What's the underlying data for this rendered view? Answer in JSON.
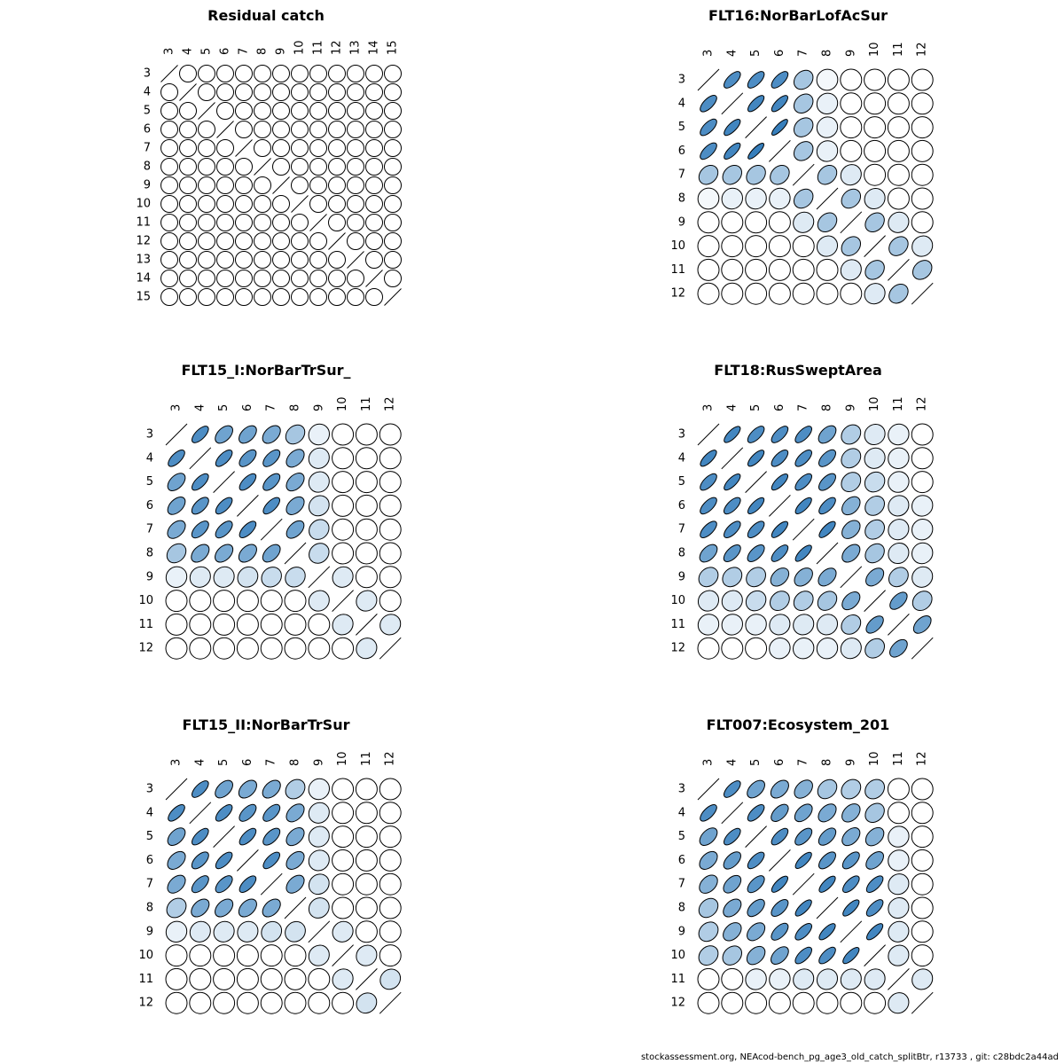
{
  "footer": "stockassessment.org, NEAcod-bench_pg_age3_old_catch_splitBtr, r13733 , git: c28bdc2a44ad",
  "color_scale": {
    "low": "#ffffff",
    "high": "#2171b5"
  },
  "chart_data": [
    {
      "type": "correlation-matrix",
      "title": "Residual catch",
      "ages": [
        "3",
        "4",
        "5",
        "6",
        "7",
        "8",
        "9",
        "10",
        "11",
        "12",
        "13",
        "14",
        "15"
      ],
      "matrix": [
        [
          1.0,
          0.0,
          0.0,
          0.0,
          0.0,
          0.0,
          0.0,
          0.0,
          0.0,
          0.0,
          0.0,
          0.0,
          0.0
        ],
        [
          0.0,
          1.0,
          0.0,
          0.0,
          0.0,
          0.0,
          0.0,
          0.0,
          0.0,
          0.0,
          0.0,
          0.0,
          0.0
        ],
        [
          0.0,
          0.0,
          1.0,
          0.0,
          0.0,
          0.0,
          0.0,
          0.0,
          0.0,
          0.0,
          0.0,
          0.0,
          0.0
        ],
        [
          0.0,
          0.0,
          0.0,
          1.0,
          0.0,
          0.0,
          0.0,
          0.0,
          0.0,
          0.0,
          0.0,
          0.0,
          0.0
        ],
        [
          0.0,
          0.0,
          0.0,
          0.0,
          1.0,
          0.0,
          0.0,
          0.0,
          0.0,
          0.0,
          0.0,
          0.0,
          0.0
        ],
        [
          0.0,
          0.0,
          0.0,
          0.0,
          0.0,
          1.0,
          0.0,
          0.0,
          0.0,
          0.0,
          0.0,
          0.0,
          0.0
        ],
        [
          0.0,
          0.0,
          0.0,
          0.0,
          0.0,
          0.0,
          1.0,
          0.0,
          0.0,
          0.0,
          0.0,
          0.0,
          0.0
        ],
        [
          0.0,
          0.0,
          0.0,
          0.0,
          0.0,
          0.0,
          0.0,
          1.0,
          0.0,
          0.0,
          0.0,
          0.0,
          0.0
        ],
        [
          0.0,
          0.0,
          0.0,
          0.0,
          0.0,
          0.0,
          0.0,
          0.0,
          1.0,
          0.0,
          0.0,
          0.0,
          0.0
        ],
        [
          0.0,
          0.0,
          0.0,
          0.0,
          0.0,
          0.0,
          0.0,
          0.0,
          0.0,
          1.0,
          0.0,
          0.0,
          0.0
        ],
        [
          0.0,
          0.0,
          0.0,
          0.0,
          0.0,
          0.0,
          0.0,
          0.0,
          0.0,
          0.0,
          1.0,
          0.0,
          0.0
        ],
        [
          0.0,
          0.0,
          0.0,
          0.0,
          0.0,
          0.0,
          0.0,
          0.0,
          0.0,
          0.0,
          0.0,
          1.0,
          0.0
        ],
        [
          0.0,
          0.0,
          0.0,
          0.0,
          0.0,
          0.0,
          0.0,
          0.0,
          0.0,
          0.0,
          0.0,
          0.0,
          1.0
        ]
      ]
    },
    {
      "type": "correlation-matrix",
      "title": "FLT16:NorBarLofAcSur",
      "ages": [
        "3",
        "4",
        "5",
        "6",
        "7",
        "8",
        "9",
        "10",
        "11",
        "12"
      ],
      "matrix": [
        [
          1.0,
          0.8,
          0.8,
          0.8,
          0.4,
          0.05,
          0.0,
          0.0,
          0.0,
          0.0
        ],
        [
          0.8,
          1.0,
          0.85,
          0.85,
          0.4,
          0.1,
          0.0,
          0.0,
          0.0,
          0.0
        ],
        [
          0.8,
          0.85,
          1.0,
          0.9,
          0.4,
          0.1,
          0.0,
          0.0,
          0.0,
          0.0
        ],
        [
          0.8,
          0.85,
          0.9,
          1.0,
          0.4,
          0.1,
          0.0,
          0.0,
          0.0,
          0.0
        ],
        [
          0.4,
          0.4,
          0.4,
          0.4,
          1.0,
          0.4,
          0.15,
          0.0,
          0.0,
          0.0
        ],
        [
          0.05,
          0.1,
          0.1,
          0.1,
          0.4,
          1.0,
          0.4,
          0.15,
          0.0,
          0.0
        ],
        [
          0.0,
          0.0,
          0.0,
          0.0,
          0.15,
          0.4,
          1.0,
          0.4,
          0.15,
          0.0
        ],
        [
          0.0,
          0.0,
          0.0,
          0.0,
          0.0,
          0.15,
          0.4,
          1.0,
          0.4,
          0.15
        ],
        [
          0.0,
          0.0,
          0.0,
          0.0,
          0.0,
          0.0,
          0.15,
          0.4,
          1.0,
          0.4
        ],
        [
          0.0,
          0.0,
          0.0,
          0.0,
          0.0,
          0.0,
          0.0,
          0.15,
          0.4,
          1.0
        ]
      ]
    },
    {
      "type": "correlation-matrix",
      "title": "FLT15_I:NorBarTrSur_",
      "ages": [
        "3",
        "4",
        "5",
        "6",
        "7",
        "8",
        "9",
        "10",
        "11",
        "12"
      ],
      "matrix": [
        [
          1.0,
          0.8,
          0.65,
          0.65,
          0.6,
          0.4,
          0.1,
          0.0,
          0.0,
          0.0
        ],
        [
          0.8,
          1.0,
          0.8,
          0.75,
          0.75,
          0.6,
          0.15,
          0.0,
          0.0,
          0.0
        ],
        [
          0.65,
          0.8,
          1.0,
          0.8,
          0.75,
          0.6,
          0.15,
          0.0,
          0.0,
          0.0
        ],
        [
          0.65,
          0.75,
          0.8,
          1.0,
          0.8,
          0.6,
          0.2,
          0.0,
          0.0,
          0.0
        ],
        [
          0.6,
          0.75,
          0.75,
          0.8,
          1.0,
          0.65,
          0.25,
          0.0,
          0.0,
          0.0
        ],
        [
          0.4,
          0.6,
          0.6,
          0.6,
          0.65,
          1.0,
          0.25,
          0.0,
          0.0,
          0.0
        ],
        [
          0.1,
          0.15,
          0.15,
          0.2,
          0.25,
          0.25,
          1.0,
          0.15,
          0.0,
          0.0
        ],
        [
          0.0,
          0.0,
          0.0,
          0.0,
          0.0,
          0.0,
          0.15,
          1.0,
          0.15,
          0.0
        ],
        [
          0.0,
          0.0,
          0.0,
          0.0,
          0.0,
          0.0,
          0.0,
          0.15,
          1.0,
          0.15
        ],
        [
          0.0,
          0.0,
          0.0,
          0.0,
          0.0,
          0.0,
          0.0,
          0.0,
          0.15,
          1.0
        ]
      ]
    },
    {
      "type": "correlation-matrix",
      "title": "FLT18:RusSweptArea",
      "ages": [
        "3",
        "4",
        "5",
        "6",
        "7",
        "8",
        "9",
        "10",
        "11",
        "12"
      ],
      "matrix": [
        [
          1.0,
          0.85,
          0.8,
          0.8,
          0.8,
          0.65,
          0.35,
          0.15,
          0.1,
          0.0
        ],
        [
          0.85,
          1.0,
          0.85,
          0.8,
          0.8,
          0.75,
          0.35,
          0.15,
          0.1,
          0.0
        ],
        [
          0.8,
          0.85,
          1.0,
          0.85,
          0.8,
          0.75,
          0.35,
          0.25,
          0.1,
          0.0
        ],
        [
          0.8,
          0.8,
          0.85,
          1.0,
          0.85,
          0.8,
          0.55,
          0.35,
          0.15,
          0.1
        ],
        [
          0.8,
          0.8,
          0.8,
          0.85,
          1.0,
          0.85,
          0.55,
          0.35,
          0.15,
          0.1
        ],
        [
          0.65,
          0.75,
          0.75,
          0.8,
          0.85,
          1.0,
          0.6,
          0.4,
          0.15,
          0.1
        ],
        [
          0.35,
          0.35,
          0.35,
          0.55,
          0.55,
          0.6,
          1.0,
          0.6,
          0.35,
          0.15
        ],
        [
          0.15,
          0.15,
          0.25,
          0.35,
          0.35,
          0.4,
          0.6,
          1.0,
          0.7,
          0.35
        ],
        [
          0.1,
          0.1,
          0.1,
          0.15,
          0.15,
          0.15,
          0.35,
          0.7,
          1.0,
          0.65
        ],
        [
          0.0,
          0.0,
          0.0,
          0.1,
          0.1,
          0.1,
          0.15,
          0.35,
          0.65,
          1.0
        ]
      ]
    },
    {
      "type": "correlation-matrix",
      "title": "FLT15_II:NorBarTrSur",
      "ages": [
        "3",
        "4",
        "5",
        "6",
        "7",
        "8",
        "9",
        "10",
        "11",
        "12"
      ],
      "matrix": [
        [
          1.0,
          0.8,
          0.65,
          0.6,
          0.6,
          0.35,
          0.1,
          0.0,
          0.0,
          0.0
        ],
        [
          0.8,
          1.0,
          0.8,
          0.75,
          0.75,
          0.6,
          0.15,
          0.0,
          0.0,
          0.0
        ],
        [
          0.65,
          0.8,
          1.0,
          0.8,
          0.75,
          0.6,
          0.15,
          0.0,
          0.0,
          0.0
        ],
        [
          0.6,
          0.75,
          0.8,
          1.0,
          0.8,
          0.6,
          0.15,
          0.0,
          0.0,
          0.0
        ],
        [
          0.6,
          0.75,
          0.75,
          0.8,
          1.0,
          0.6,
          0.2,
          0.0,
          0.0,
          0.0
        ],
        [
          0.35,
          0.6,
          0.6,
          0.6,
          0.6,
          1.0,
          0.2,
          0.0,
          0.0,
          0.0
        ],
        [
          0.1,
          0.15,
          0.15,
          0.15,
          0.2,
          0.2,
          1.0,
          0.15,
          0.0,
          0.0
        ],
        [
          0.0,
          0.0,
          0.0,
          0.0,
          0.0,
          0.0,
          0.15,
          1.0,
          0.15,
          0.0
        ],
        [
          0.0,
          0.0,
          0.0,
          0.0,
          0.0,
          0.0,
          0.0,
          0.15,
          1.0,
          0.2
        ],
        [
          0.0,
          0.0,
          0.0,
          0.0,
          0.0,
          0.0,
          0.0,
          0.0,
          0.2,
          1.0
        ]
      ]
    },
    {
      "type": "correlation-matrix",
      "title": "FLT007:Ecosystem_201",
      "ages": [
        "3",
        "4",
        "5",
        "6",
        "7",
        "8",
        "9",
        "10",
        "11",
        "12"
      ],
      "matrix": [
        [
          1.0,
          0.8,
          0.65,
          0.6,
          0.55,
          0.4,
          0.35,
          0.35,
          0.0,
          0.0
        ],
        [
          0.8,
          1.0,
          0.8,
          0.7,
          0.65,
          0.6,
          0.55,
          0.4,
          0.0,
          0.0
        ],
        [
          0.65,
          0.8,
          1.0,
          0.8,
          0.75,
          0.7,
          0.6,
          0.55,
          0.1,
          0.0
        ],
        [
          0.6,
          0.7,
          0.8,
          1.0,
          0.85,
          0.75,
          0.75,
          0.65,
          0.1,
          0.0
        ],
        [
          0.55,
          0.65,
          0.75,
          0.85,
          1.0,
          0.85,
          0.8,
          0.8,
          0.15,
          0.0
        ],
        [
          0.4,
          0.6,
          0.7,
          0.75,
          0.85,
          1.0,
          0.85,
          0.8,
          0.15,
          0.0
        ],
        [
          0.35,
          0.55,
          0.6,
          0.75,
          0.8,
          0.85,
          1.0,
          0.85,
          0.15,
          0.0
        ],
        [
          0.35,
          0.4,
          0.55,
          0.65,
          0.8,
          0.8,
          0.85,
          1.0,
          0.15,
          0.0
        ],
        [
          0.0,
          0.0,
          0.1,
          0.1,
          0.15,
          0.15,
          0.15,
          0.15,
          1.0,
          0.15
        ],
        [
          0.0,
          0.0,
          0.0,
          0.0,
          0.0,
          0.0,
          0.0,
          0.0,
          0.15,
          1.0
        ]
      ]
    }
  ]
}
